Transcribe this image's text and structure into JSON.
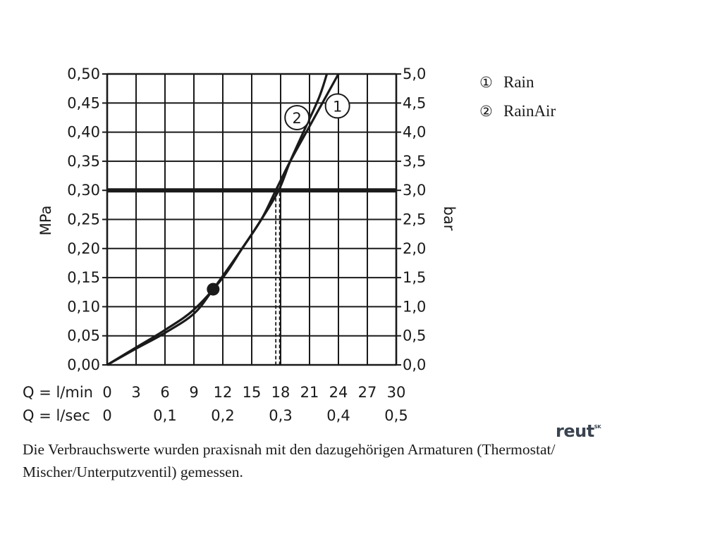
{
  "chart_data": {
    "type": "line",
    "title": "",
    "y_left_label": "MPa",
    "y_right_label": "bar",
    "ylim": [
      0,
      0.5
    ],
    "y_left_ticks": [
      "0,00",
      "0,05",
      "0,10",
      "0,15",
      "0,20",
      "0,25",
      "0,30",
      "0,35",
      "0,40",
      "0,45",
      "0,50"
    ],
    "y_right_ticks": [
      "0,0",
      "0,5",
      "1,0",
      "1,5",
      "2,0",
      "2,5",
      "3,0",
      "3,5",
      "4,0",
      "4,5",
      "5,0"
    ],
    "xlim": [
      0,
      30
    ],
    "x_row_lmin": {
      "label": "Q = l/min",
      "ticks": [
        "0",
        "3",
        "6",
        "9",
        "12",
        "15",
        "18",
        "21",
        "24",
        "27",
        "30"
      ]
    },
    "x_row_lsec": {
      "label": "Q = l/sec",
      "ticks": [
        "0",
        "0,1",
        "0,2",
        "0,3",
        "0,4",
        "0,5"
      ]
    },
    "reference_line": {
      "y": 0.3
    },
    "series": [
      {
        "marker_label": "1",
        "x": [
          0,
          3,
          6,
          9,
          12,
          14,
          16,
          17.5,
          19,
          21,
          23,
          24
        ],
        "y": [
          0,
          0.03,
          0.06,
          0.095,
          0.15,
          0.2,
          0.25,
          0.3,
          0.35,
          0.41,
          0.47,
          0.5
        ]
      },
      {
        "marker_label": "2",
        "x": [
          0,
          3,
          6,
          9,
          11,
          14,
          16,
          17.8,
          19,
          20.5,
          22,
          22.8
        ],
        "y": [
          0,
          0.028,
          0.055,
          0.088,
          0.13,
          0.2,
          0.25,
          0.3,
          0.35,
          0.405,
          0.46,
          0.5
        ]
      }
    ],
    "operating_point": {
      "x": 11,
      "y": 0.13
    },
    "dashed_drop_x": [
      17.5,
      17.9
    ],
    "series_marker_positions": [
      {
        "x": 23.9,
        "y": 0.445
      },
      {
        "x": 19.7,
        "y": 0.425
      }
    ]
  },
  "legend": [
    {
      "num": "①",
      "label": "Rain"
    },
    {
      "num": "②",
      "label": "RainAir"
    }
  ],
  "caption": "Die Verbrauchswerte wurden praxisnah mit den dazugehörigen Armaturen (Thermostat/ Mischer/Unterputzventil) gemessen.",
  "logo": {
    "text": "reut",
    "sup": "SK"
  }
}
